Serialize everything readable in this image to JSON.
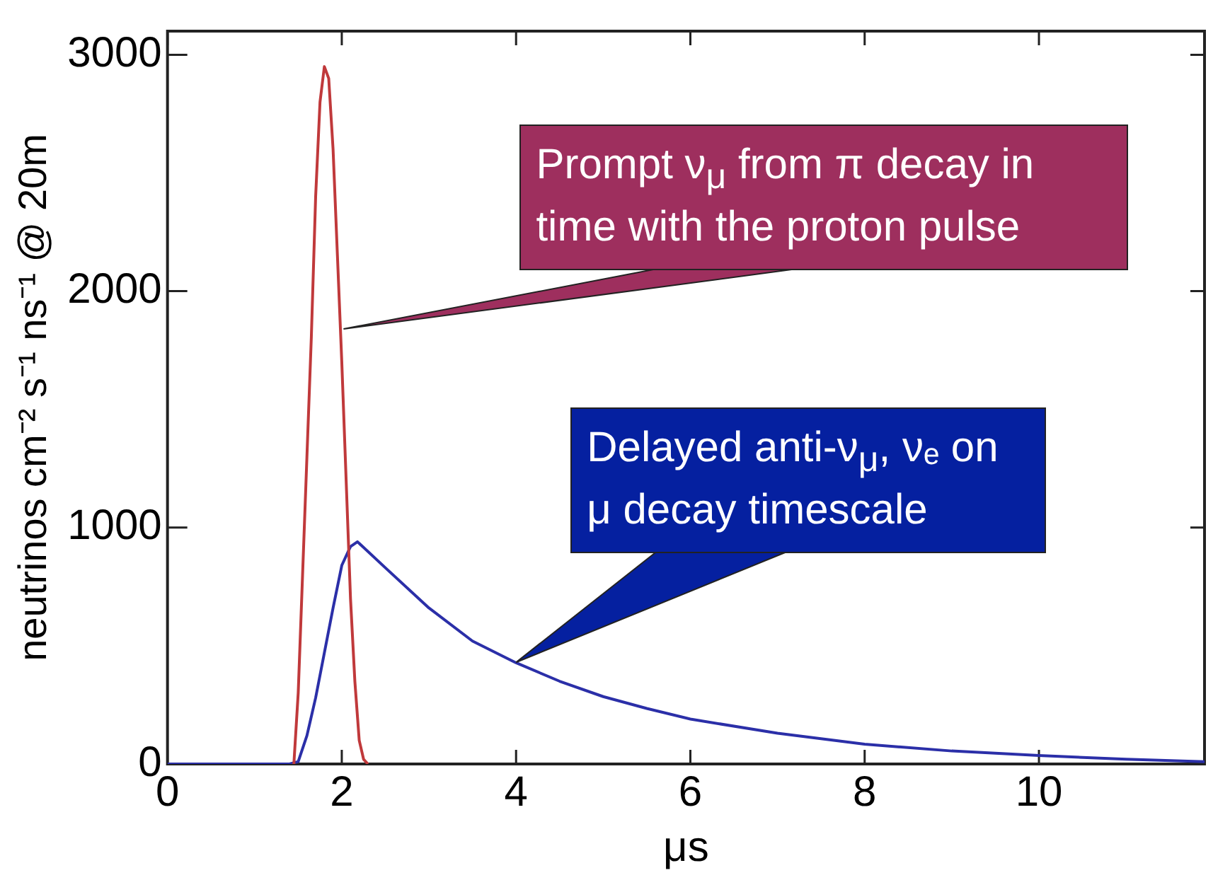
{
  "chart_data": {
    "type": "line",
    "xlabel": "μs",
    "ylabel": "neutrinos cm⁻² s⁻¹ ns⁻¹ @ 20m",
    "xlim": [
      0,
      11.9
    ],
    "ylim": [
      0,
      3100
    ],
    "xticks": [
      0,
      2,
      4,
      6,
      8,
      10
    ],
    "yticks": [
      0,
      1000,
      2000,
      3000
    ],
    "grid": false,
    "legend": false,
    "marker": "none",
    "line_style": "solid",
    "series": [
      {
        "color": "#c0393b",
        "x": [
          1.45,
          1.5,
          1.55,
          1.6,
          1.65,
          1.7,
          1.75,
          1.8,
          1.85,
          1.9,
          1.95,
          2.0,
          2.05,
          2.1,
          2.15,
          2.2,
          2.25,
          2.3
        ],
        "values": [
          0,
          300,
          800,
          1300,
          1800,
          2400,
          2800,
          2950,
          2900,
          2600,
          2150,
          1700,
          1200,
          700,
          350,
          100,
          20,
          0
        ]
      },
      {
        "color": "#2b2fa8",
        "x": [
          0,
          1.4,
          1.5,
          1.6,
          1.7,
          1.8,
          1.9,
          2.0,
          2.1,
          2.18,
          2.5,
          3.0,
          3.5,
          4.0,
          4.5,
          5.0,
          5.5,
          6.0,
          7.0,
          8.0,
          9.0,
          10.0,
          11.0,
          11.9
        ],
        "values": [
          0,
          0,
          10,
          120,
          280,
          470,
          660,
          840,
          920,
          940,
          830,
          660,
          520,
          428,
          350,
          285,
          235,
          190,
          130,
          84,
          55,
          36,
          20,
          10
        ]
      }
    ],
    "annotations": [
      {
        "text": "Prompt ν$_{μ}$ from π decay in time with the proton pulse",
        "x": 2.02,
        "y": 1840
      },
      {
        "text": "Delayed anti-ν$_{μ}$, νₑ on μ decay timescale",
        "x": 4,
        "y": 430
      }
    ]
  }
}
